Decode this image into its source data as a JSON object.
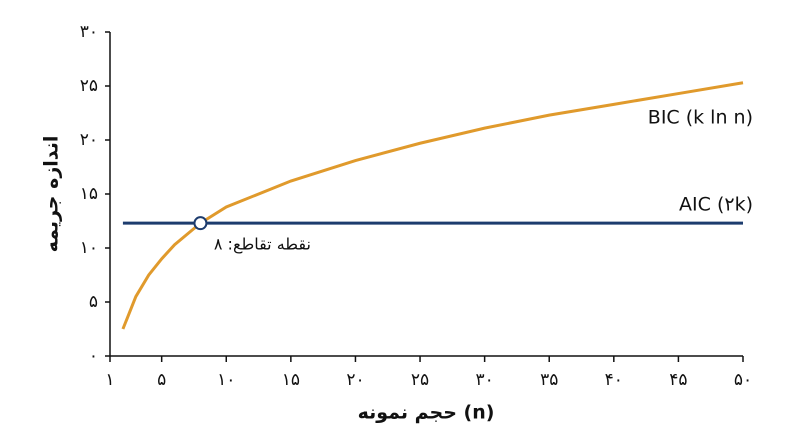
{
  "chart_data": {
    "type": "line",
    "x_label": "حجم نمونه (n)",
    "y_label": "اندازه جریمه",
    "x": [
      2,
      3,
      4,
      5,
      6,
      8,
      10,
      15,
      20,
      25,
      30,
      35,
      40,
      45,
      50
    ],
    "series": [
      {
        "name": "BIC (k ln n)",
        "color": "#e09a2c",
        "values": [
          2.5,
          5.5,
          7.5,
          9,
          10.3,
          12.3,
          13.8,
          16.2,
          18.1,
          19.7,
          21.1,
          22.3,
          23.3,
          24.3,
          25.3
        ]
      },
      {
        "name": "AIC (۲k)",
        "color": "#1d3c6e",
        "values": [
          12.3,
          12.3,
          12.3,
          12.3,
          12.3,
          12.3,
          12.3,
          12.3,
          12.3,
          12.3,
          12.3,
          12.3,
          12.3,
          12.3,
          12.3
        ]
      }
    ],
    "annotation": {
      "text": "نقطه تقاطع: ۸",
      "x": 8,
      "y": 12.3
    },
    "xlim": [
      1,
      50
    ],
    "xticks": [
      {
        "value": 1,
        "label": "۱"
      },
      {
        "value": 5,
        "label": "۵"
      },
      {
        "value": 10,
        "label": "۱۰"
      },
      {
        "value": 15,
        "label": "۱۵"
      },
      {
        "value": 20,
        "label": "۲۰"
      },
      {
        "value": 25,
        "label": "۲۵"
      },
      {
        "value": 30,
        "label": "۳۰"
      },
      {
        "value": 35,
        "label": "۳۵"
      },
      {
        "value": 40,
        "label": "۴۰"
      },
      {
        "value": 45,
        "label": "۴۵"
      },
      {
        "value": 50,
        "label": "۵۰"
      }
    ],
    "ylim": [
      0,
      30
    ],
    "yticks": [
      {
        "value": 0,
        "label": "۰"
      },
      {
        "value": 5,
        "label": "۵"
      },
      {
        "value": 10,
        "label": "۱۰"
      },
      {
        "value": 15,
        "label": "۱۵"
      },
      {
        "value": 20,
        "label": "۲۰"
      },
      {
        "value": 25,
        "label": "۲۵"
      },
      {
        "value": 30,
        "label": "۳۰"
      }
    ]
  }
}
